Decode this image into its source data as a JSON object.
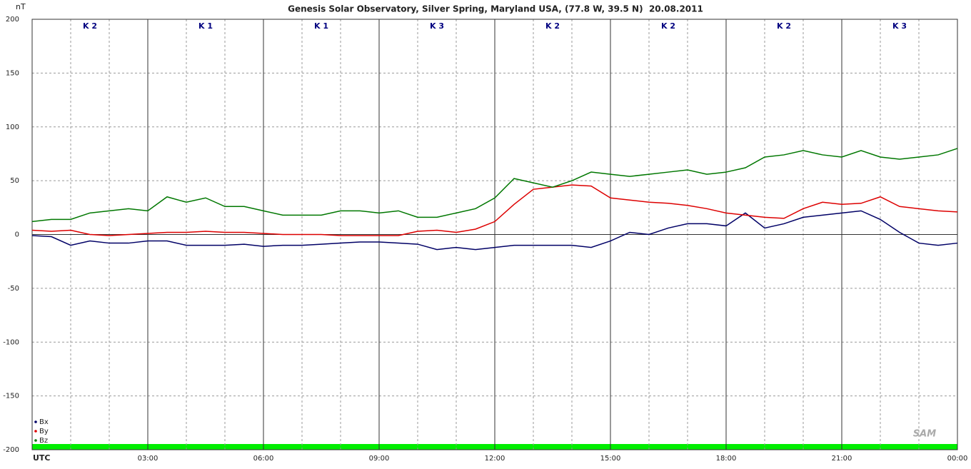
{
  "chart_data": {
    "type": "line",
    "title": "Genesis Solar Observatory, Silver Spring, Maryland USA, (77.8 W, 39.5 N)  20.08.2011",
    "y_label": "nT",
    "x_label": "UTC",
    "logo": "SAM",
    "x": [
      0,
      0.5,
      1,
      1.5,
      2,
      2.5,
      3,
      3.5,
      4,
      4.5,
      5,
      5.5,
      6,
      6.5,
      7,
      7.5,
      8,
      8.5,
      9,
      9.5,
      10,
      10.5,
      11,
      11.5,
      12,
      12.5,
      13,
      13.5,
      14,
      14.5,
      15,
      15.5,
      16,
      16.5,
      17,
      17.5,
      18,
      18.5,
      19,
      19.5,
      20,
      20.5,
      21,
      21.5,
      22,
      22.5,
      23,
      23.5,
      24
    ],
    "series": [
      {
        "name": "Bx",
        "color": "#000066",
        "values": [
          -1,
          -2,
          -10,
          -6,
          -8,
          -8,
          -6,
          -6,
          -10,
          -10,
          -10,
          -9,
          -11,
          -10,
          -10,
          -9,
          -8,
          -7,
          -7,
          -8,
          -9,
          -14,
          -12,
          -14,
          -12,
          -10,
          -10,
          -10,
          -10,
          -12,
          -6,
          2,
          0,
          6,
          10,
          10,
          8,
          20,
          6,
          10,
          16,
          18,
          20,
          22,
          14,
          2,
          -8,
          -10,
          -8
        ]
      },
      {
        "name": "By",
        "color": "#dd0000",
        "values": [
          4,
          3,
          4,
          0,
          -1,
          0,
          1,
          2,
          2,
          3,
          2,
          2,
          1,
          0,
          0,
          0,
          -1,
          -1,
          -1,
          -1,
          3,
          4,
          2,
          5,
          12,
          28,
          42,
          44,
          46,
          45,
          34,
          32,
          30,
          29,
          27,
          24,
          20,
          18,
          16,
          15,
          24,
          30,
          28,
          29,
          35,
          26,
          24,
          22,
          21
        ]
      },
      {
        "name": "Bz",
        "color": "#007700",
        "values": [
          12,
          14,
          14,
          20,
          22,
          24,
          22,
          35,
          30,
          34,
          26,
          26,
          22,
          18,
          18,
          18,
          22,
          22,
          20,
          22,
          16,
          16,
          20,
          24,
          34,
          52,
          48,
          44,
          50,
          58,
          56,
          54,
          56,
          58,
          60,
          56,
          58,
          62,
          72,
          74,
          78,
          74,
          72,
          78,
          72,
          70,
          72,
          74,
          80
        ]
      }
    ],
    "xlim": [
      0,
      24
    ],
    "ylim": [
      -200,
      200
    ],
    "yticks": [
      -200,
      -150,
      -100,
      -50,
      0,
      50,
      100,
      150,
      200
    ],
    "xticks": [
      {
        "value": 3,
        "label": "03:00"
      },
      {
        "value": 6,
        "label": "06:00"
      },
      {
        "value": 9,
        "label": "09:00"
      },
      {
        "value": 12,
        "label": "12:00"
      },
      {
        "value": 15,
        "label": "15:00"
      },
      {
        "value": 18,
        "label": "18:00"
      },
      {
        "value": 21,
        "label": "21:00"
      },
      {
        "value": 24,
        "label": "00:00"
      }
    ],
    "annotations": [
      "K 2",
      "K 1",
      "K 1",
      "K 3",
      "K 2",
      "K 2",
      "K 2",
      "K 3"
    ],
    "grid": true
  }
}
